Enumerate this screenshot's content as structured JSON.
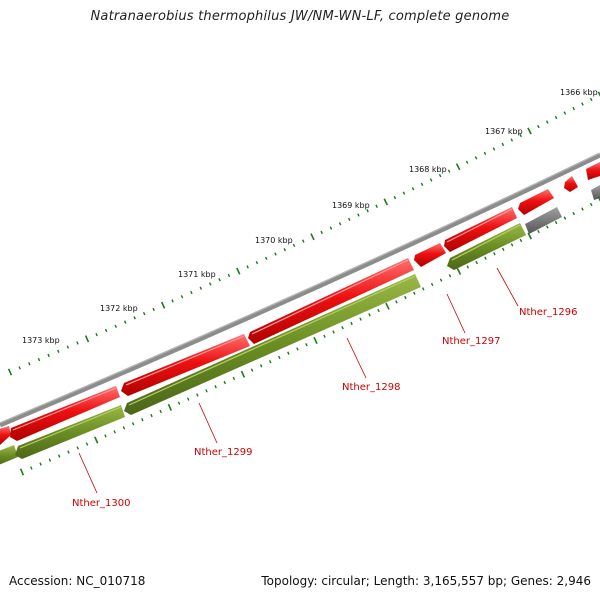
{
  "title": "Natranaerobius thermophilus JW/NM-WN-LF, complete genome",
  "footer": {
    "accession": "Accession: NC_010718",
    "summary": "Topology: circular; Length: 3,165,557 bp; Genes: 2,946"
  },
  "colors": {
    "backbone": "#8c8c8c",
    "forward_gene": "#ee1111",
    "reverse_gene": "#6b8e23",
    "other_feature": "#6a6a6a",
    "tick": "#1a7a1a",
    "label": "#cc0000"
  },
  "scale_labels": [
    "1366 kbp",
    "1367 kbp",
    "1368 kbp",
    "1369 kbp",
    "1370 kbp",
    "1371 kbp",
    "1372 kbp",
    "1373 kbp"
  ],
  "gene_labels": [
    "Nther_1296",
    "Nther_1297",
    "Nther_1298",
    "Nther_1299",
    "Nther_1300"
  ]
}
